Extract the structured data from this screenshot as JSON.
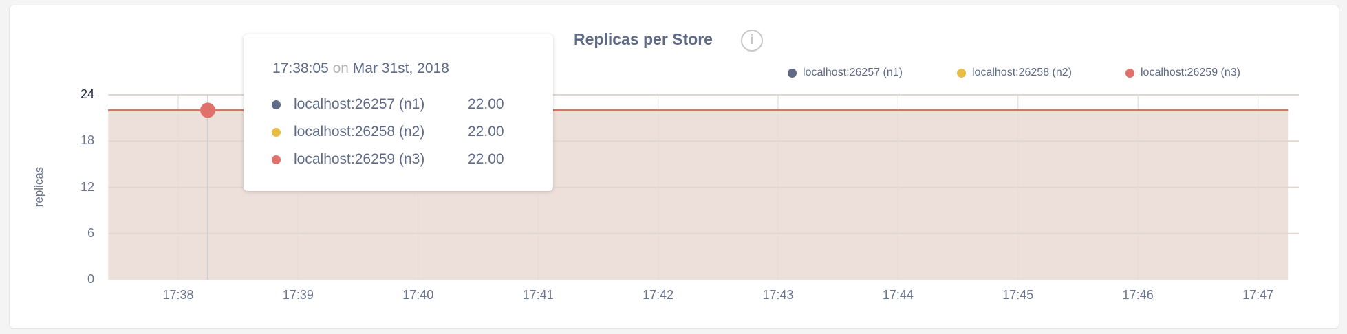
{
  "chart_data": {
    "type": "area",
    "title": "Replicas per Store",
    "ylabel": "replicas",
    "xlabel": "",
    "ylim": [
      0,
      24
    ],
    "yticks": [
      "0",
      "6",
      "12",
      "18",
      "24"
    ],
    "xticks": [
      "17:38",
      "17:39",
      "17:40",
      "17:41",
      "17:42",
      "17:43",
      "17:44",
      "17:45",
      "17:46",
      "17:47"
    ],
    "x_range": [
      "17:37:25",
      "17:47:15"
    ],
    "grid": true,
    "legend_position": "top-right",
    "series": [
      {
        "name": "localhost:26257 (n1)",
        "color": "#5f6a87",
        "x": [
          "17:37:25",
          "17:47:15"
        ],
        "values": [
          22,
          22
        ]
      },
      {
        "name": "localhost:26258 (n2)",
        "color": "#e9bd45",
        "x": [
          "17:37:25",
          "17:47:15"
        ],
        "values": [
          22,
          22
        ]
      },
      {
        "name": "localhost:26259 (n3)",
        "color": "#e0706a",
        "x": [
          "17:37:25",
          "17:47:15"
        ],
        "values": [
          22,
          22
        ]
      }
    ],
    "fill_color": "#eddfd9",
    "hover": {
      "time": "17:38:05",
      "on": "on",
      "date": "Mar 31st, 2018",
      "rows": [
        {
          "name": "localhost:26257 (n1)",
          "value": "22.00",
          "color": "#5f6a87"
        },
        {
          "name": "localhost:26258 (n2)",
          "value": "22.00",
          "color": "#e9bd45"
        },
        {
          "name": "localhost:26259 (n3)",
          "value": "22.00",
          "color": "#e0706a"
        }
      ]
    }
  },
  "info_icon": "info-circle-icon"
}
